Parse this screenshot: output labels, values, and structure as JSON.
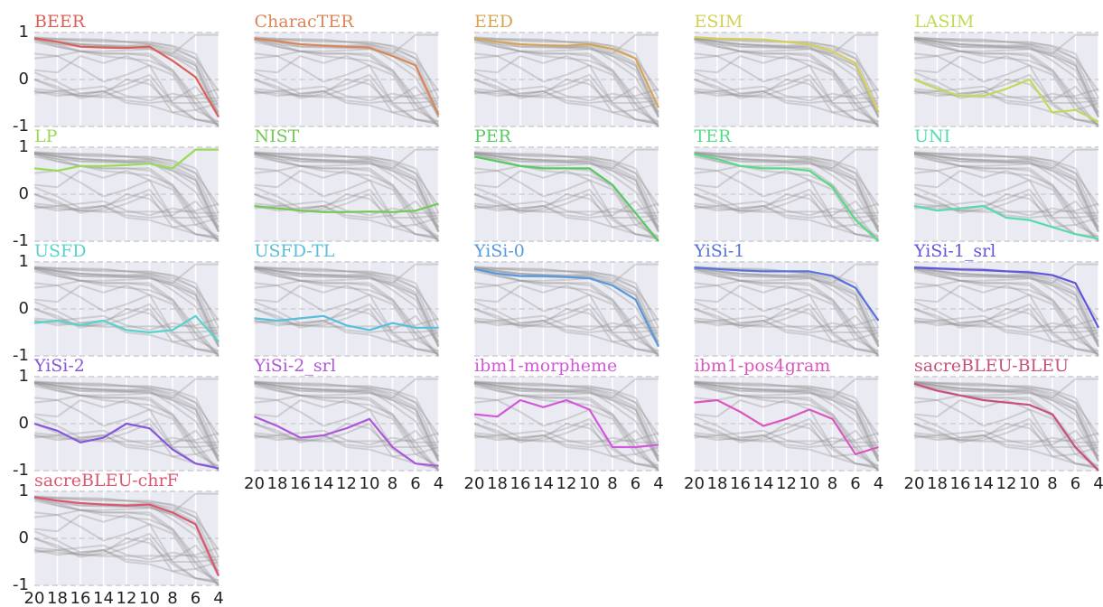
{
  "chart_data": {
    "type": "line",
    "x": [
      20,
      18,
      16,
      14,
      12,
      10,
      8,
      6,
      4
    ],
    "xlim": [
      20,
      4
    ],
    "xticks": [
      20,
      18,
      16,
      14,
      12,
      10,
      8,
      6,
      4
    ],
    "ylim": [
      -1,
      1
    ],
    "yticks": [
      -1,
      0,
      1
    ],
    "grid": true,
    "series": [
      {
        "name": "BEER",
        "color": "#db5f57",
        "values": [
          0.88,
          0.8,
          0.7,
          0.68,
          0.67,
          0.7,
          0.4,
          0.05,
          -0.8
        ]
      },
      {
        "name": "CharacTER",
        "color": "#db8657",
        "values": [
          0.87,
          0.82,
          0.75,
          0.72,
          0.7,
          0.68,
          0.5,
          0.3,
          -0.75
        ]
      },
      {
        "name": "EED",
        "color": "#d4a557",
        "values": [
          0.88,
          0.8,
          0.75,
          0.73,
          0.72,
          0.75,
          0.65,
          0.45,
          -0.6
        ]
      },
      {
        "name": "ESIM",
        "color": "#d3cf57",
        "values": [
          0.9,
          0.87,
          0.86,
          0.85,
          0.8,
          0.75,
          0.6,
          0.35,
          -0.7
        ]
      },
      {
        "name": "LASIM",
        "color": "#bfdb57",
        "values": [
          0.0,
          -0.2,
          -0.35,
          -0.35,
          -0.2,
          0.0,
          -0.7,
          -0.65,
          -0.9
        ]
      },
      {
        "name": "LP",
        "color": "#99db57",
        "values": [
          0.55,
          0.5,
          0.6,
          0.6,
          0.62,
          0.65,
          0.55,
          0.95,
          0.95
        ]
      },
      {
        "name": "NIST",
        "color": "#72c957",
        "values": [
          -0.25,
          -0.3,
          -0.35,
          -0.38,
          -0.38,
          -0.37,
          -0.38,
          -0.35,
          -0.2
        ]
      },
      {
        "name": "PER",
        "color": "#57c95f",
        "values": [
          0.8,
          0.7,
          0.6,
          0.55,
          0.55,
          0.55,
          0.2,
          -0.4,
          -1.0
        ]
      },
      {
        "name": "TER",
        "color": "#57db86",
        "values": [
          0.85,
          0.75,
          0.6,
          0.55,
          0.55,
          0.5,
          0.15,
          -0.55,
          -1.0
        ]
      },
      {
        "name": "UNI",
        "color": "#57dbad",
        "values": [
          -0.25,
          -0.35,
          -0.3,
          -0.25,
          -0.5,
          -0.55,
          -0.7,
          -0.85,
          -0.95
        ]
      },
      {
        "name": "USFD",
        "color": "#57d3cb",
        "values": [
          -0.3,
          -0.25,
          -0.35,
          -0.25,
          -0.45,
          -0.5,
          -0.45,
          -0.15,
          -0.7
        ]
      },
      {
        "name": "USFD-TL",
        "color": "#57bfdb",
        "values": [
          -0.2,
          -0.25,
          -0.2,
          -0.15,
          -0.35,
          -0.45,
          -0.3,
          -0.4,
          -0.4
        ]
      },
      {
        "name": "YiSi-0",
        "color": "#5799db",
        "values": [
          0.85,
          0.75,
          0.7,
          0.7,
          0.68,
          0.65,
          0.5,
          0.2,
          -0.8
        ]
      },
      {
        "name": "YiSi-1",
        "color": "#5772db",
        "values": [
          0.88,
          0.85,
          0.82,
          0.8,
          0.8,
          0.8,
          0.7,
          0.45,
          -0.25
        ]
      },
      {
        "name": "YiSi-1_srl",
        "color": "#5f57db",
        "values": [
          0.88,
          0.86,
          0.84,
          0.83,
          0.8,
          0.78,
          0.72,
          0.55,
          -0.4
        ]
      },
      {
        "name": "YiSi-2",
        "color": "#8657db",
        "values": [
          0.0,
          -0.15,
          -0.4,
          -0.3,
          0.0,
          -0.1,
          -0.55,
          -0.85,
          -0.95
        ]
      },
      {
        "name": "YiSi-2_srl",
        "color": "#ad57db",
        "values": [
          0.15,
          -0.05,
          -0.3,
          -0.25,
          -0.1,
          0.1,
          -0.5,
          -0.85,
          -0.9
        ]
      },
      {
        "name": "ibm1-morpheme",
        "color": "#d357db",
        "values": [
          0.2,
          0.15,
          0.5,
          0.35,
          0.5,
          0.3,
          -0.5,
          -0.5,
          -0.45
        ]
      },
      {
        "name": "ibm1-pos4gram",
        "color": "#db57bf",
        "values": [
          0.45,
          0.5,
          0.25,
          -0.05,
          0.1,
          0.3,
          0.1,
          -0.65,
          -0.5
        ]
      },
      {
        "name": "sacreBLEU-BLEU",
        "color": "#c94f7c",
        "values": [
          0.85,
          0.7,
          0.6,
          0.5,
          0.45,
          0.4,
          0.2,
          -0.5,
          -1.0
        ]
      },
      {
        "name": "sacreBLEU-chrF",
        "color": "#db5772",
        "values": [
          0.88,
          0.8,
          0.75,
          0.72,
          0.7,
          0.72,
          0.55,
          0.3,
          -0.8
        ]
      }
    ]
  }
}
